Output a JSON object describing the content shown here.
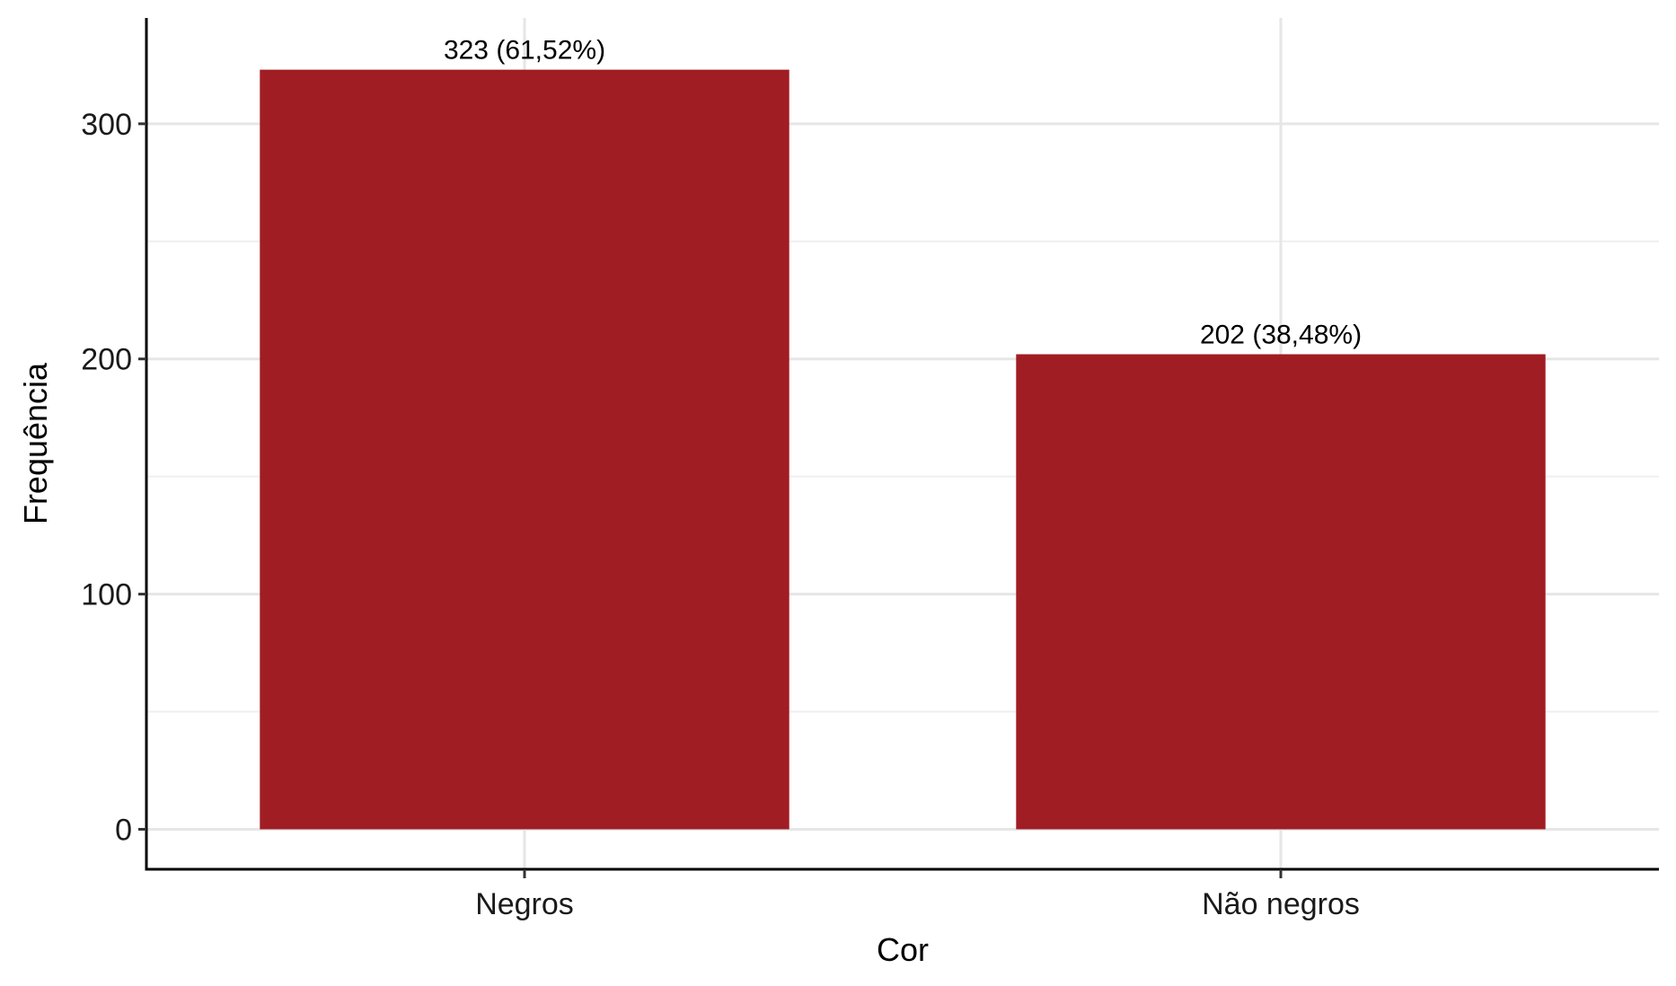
{
  "chart_data": {
    "type": "bar",
    "categories": [
      "Negros",
      "Não negros"
    ],
    "values": [
      323,
      202
    ],
    "data_labels": [
      "323 (61,52%)",
      "202 (38,48%)"
    ],
    "xlabel": "Cor",
    "ylabel": "Frequência",
    "ylim": [
      -17,
      345
    ],
    "yticks": [
      0,
      100,
      200,
      300
    ],
    "ytick_labels": [
      "0",
      "100",
      "200",
      "300"
    ],
    "grid": true,
    "legend": "none",
    "bar_color": "#a01d23"
  }
}
